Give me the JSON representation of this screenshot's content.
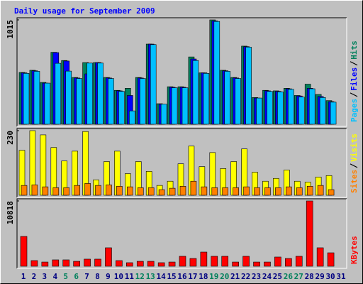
{
  "title": "Daily usage for September 2009",
  "chart_data": [
    {
      "type": "bar",
      "ylim": [
        0,
        1015
      ],
      "yticks": [
        1015
      ],
      "series": [
        {
          "name": "Hits",
          "color": "#00805c",
          "values": [
            504,
            525,
            407,
            700,
            620,
            455,
            600,
            600,
            455,
            330,
            350,
            455,
            780,
            200,
            365,
            365,
            655,
            500,
            1015,
            525,
            455,
            760,
            260,
            330,
            325,
            350,
            280,
            390,
            290,
            230,
            null
          ]
        },
        {
          "name": "Files",
          "color": "#0000ff",
          "values": [
            500,
            520,
            400,
            697,
            615,
            450,
            490,
            600,
            450,
            325,
            280,
            450,
            780,
            195,
            360,
            360,
            635,
            500,
            1005,
            520,
            450,
            755,
            255,
            325,
            320,
            345,
            275,
            350,
            270,
            220,
            null
          ]
        },
        {
          "name": "Pages",
          "color": "#00c0ff",
          "values": [
            495,
            515,
            400,
            593,
            517,
            445,
            595,
            595,
            445,
            320,
            130,
            445,
            775,
            195,
            355,
            355,
            620,
            495,
            1000,
            515,
            445,
            750,
            255,
            320,
            315,
            340,
            265,
            345,
            260,
            215,
            null
          ]
        }
      ]
    },
    {
      "type": "bar",
      "ylim": [
        0,
        230
      ],
      "yticks": [
        230
      ],
      "series": [
        {
          "name": "Visits",
          "color": "#ffff00",
          "values": [
            160,
            230,
            215,
            170,
            122,
            157,
            227,
            55,
            120,
            157,
            77,
            120,
            85,
            35,
            50,
            112,
            175,
            102,
            152,
            95,
            120,
            165,
            82,
            50,
            60,
            90,
            50,
            47,
            65,
            70,
            null
          ]
        },
        {
          "name": "Sites",
          "color": "#ff8000",
          "values": [
            35,
            37,
            30,
            27,
            27,
            35,
            42,
            35,
            37,
            32,
            30,
            27,
            27,
            20,
            25,
            32,
            50,
            30,
            27,
            27,
            27,
            30,
            27,
            27,
            27,
            30,
            27,
            32,
            35,
            20,
            null
          ]
        }
      ]
    },
    {
      "type": "bar",
      "ylim": [
        0,
        10818
      ],
      "yticks": [
        10818
      ],
      "categories": [
        "1",
        "2",
        "3",
        "4",
        "5",
        "6",
        "7",
        "8",
        "9",
        "10",
        "11",
        "12",
        "13",
        "14",
        "15",
        "16",
        "17",
        "18",
        "19",
        "20",
        "21",
        "22",
        "23",
        "24",
        "25",
        "26",
        "27",
        "28",
        "29",
        "30",
        "31"
      ],
      "weekends": [
        4,
        5,
        11,
        12,
        18,
        19,
        25,
        26
      ],
      "weekend_color": "#00805c",
      "label_color": "#000080",
      "series": [
        {
          "name": "KBytes",
          "color": "#ff0000",
          "values": [
            4940,
            940,
            700,
            1060,
            1060,
            820,
            1180,
            1180,
            3060,
            940,
            590,
            820,
            820,
            590,
            700,
            1650,
            1290,
            2350,
            1650,
            1650,
            700,
            1650,
            700,
            700,
            1530,
            1290,
            1650,
            10818,
            3060,
            2230,
            null
          ]
        }
      ]
    }
  ]
}
